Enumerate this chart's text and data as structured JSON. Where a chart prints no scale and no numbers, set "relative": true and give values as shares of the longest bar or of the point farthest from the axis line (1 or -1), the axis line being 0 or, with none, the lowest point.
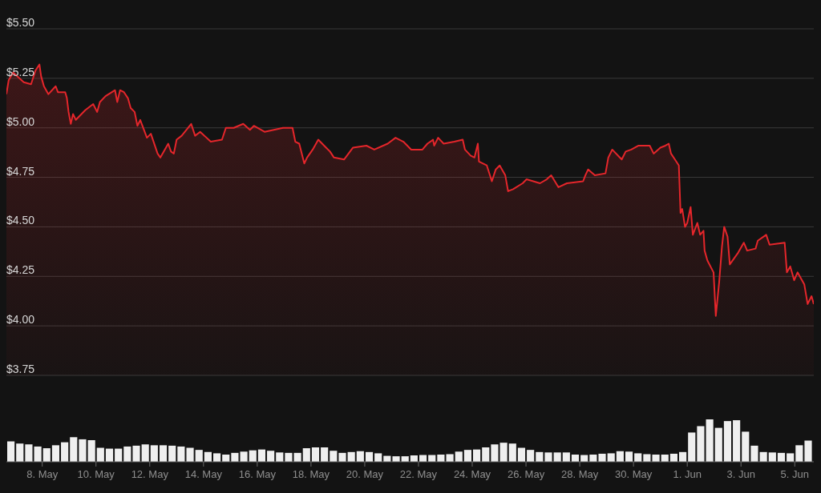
{
  "chart_data": [
    {
      "type": "area",
      "color": "#e5262b",
      "grid": "y",
      "tick_labels": "y",
      "xlim": [
        "--05-06T16:00",
        "--06-05T17:00"
      ],
      "ylim": [
        3.75,
        5.5
      ],
      "yticks": [
        {
          "value": 3.75,
          "label": "$3.75"
        },
        {
          "value": 4,
          "label": "$4.00"
        },
        {
          "value": 4.25,
          "label": "$4.25"
        },
        {
          "value": 4.5,
          "label": "$4.50"
        },
        {
          "value": 4.75,
          "label": "$4.75"
        },
        {
          "value": 5,
          "label": "$5.00"
        },
        {
          "value": 5.25,
          "label": "$5.25"
        },
        {
          "value": 5.5,
          "label": "$5.50"
        }
      ],
      "x": [
        "--05-06T16:00",
        "--05-06T18:00",
        "--05-06T22:00",
        "--05-07T07:30",
        "--05-07T14:00",
        "--05-07T18:00",
        "--05-07T21:30",
        "--05-07T23:00",
        "--05-08T01:30",
        "--05-08T05:30",
        "--05-08T12:00",
        "--05-08T14:00",
        "--05-08T20:30",
        "--05-08T22:00",
        "--05-08T23:30",
        "--05-09T01:30",
        "--05-09T03:30",
        "--05-09T06:00",
        "--05-09T14:30",
        "--05-09T21:30",
        "--05-10T01:00",
        "--05-10T03:30",
        "--05-10T08:30",
        "--05-10T17:00",
        "--05-10T19:00",
        "--05-10T21:30",
        "--05-11T01:00",
        "--05-11T04:30",
        "--05-11T07:00",
        "--05-11T10:30",
        "--05-11T13:00",
        "--05-11T15:30",
        "--05-11T21:30",
        "--05-12T01:00",
        "--05-12T07:00",
        "--05-12T09:30",
        "--05-12T16:30",
        "--05-12T19:00",
        "--05-12T21:30",
        "--05-13T00:00",
        "--05-13T04:30",
        "--05-13T13:00",
        "--05-13T16:30",
        "--05-13T21:00",
        "--05-14T06:30",
        "--05-14T16:30",
        "--05-14T20:00",
        "--05-15T03:00",
        "--05-15T11:30",
        "--05-15T17:30",
        "--05-15T21:00",
        "--05-16T06:30",
        "--05-16T23:00",
        "--05-17T07:30",
        "--05-17T10:00",
        "--05-17T13:30",
        "--05-17T18:00",
        "--05-17T20:30",
        "--05-18T01:30",
        "--05-18T06:30",
        "--05-18T13:30",
        "--05-18T17:00",
        "--05-18T20:30",
        "--05-19T05:30",
        "--05-19T09:30",
        "--05-19T13:30",
        "--05-20T01:30",
        "--05-20T08:30",
        "--05-20T20:30",
        "--05-21T03:30",
        "--05-21T10:30",
        "--05-21T17:30",
        "--05-22T03:30",
        "--05-22T08:00",
        "--05-22T13:00",
        "--05-22T14:00",
        "--05-22T17:30",
        "--05-22T22:30",
        "--05-23T08:00",
        "--05-23T15:30",
        "--05-23T17:30",
        "--05-23T22:30",
        "--05-24T02:00",
        "--05-24T05:00",
        "--05-24T06:00",
        "--05-24T13:00",
        "--05-24T17:30",
        "--05-24T21:00",
        "--05-25T00:30",
        "--05-25T05:30",
        "--05-25T08:00",
        "--05-25T12:30",
        "--05-25T21:00",
        "--05-26T00:30",
        "--05-26T12:30",
        "--05-26T18:30",
        "--05-26T22:30",
        "--05-27T05:00",
        "--05-27T12:30",
        "--05-28T03:00",
        "--05-28T05:00",
        "--05-28T07:30",
        "--05-28T13:30",
        "--05-28T23:00",
        "--05-29T01:30",
        "--05-29T05:00",
        "--05-29T13:30",
        "--05-29T17:00",
        "--05-29T22:00",
        "--05-30T04:30",
        "--05-30T14:30",
        "--05-30T18:00",
        "--05-31T00:00",
        "--05-31T04:30",
        "--05-31T07:30",
        "--05-31T09:30",
        "--05-31T13:00",
        "--05-31T16:30",
        "--05-31T18:00",
        "--05-31T19:30",
        "--05-31T22:00",
        "--06-01T00:00",
        "--06-01T03:00",
        "--06-01T05:00",
        "--06-01T09:00",
        "--06-01T11:30",
        "--06-01T14:30",
        "--06-01T15:30",
        "--06-01T18:00",
        "--06-01T23:30",
        "--06-02T01:30",
        "--06-02T04:30",
        "--06-02T07:00",
        "--06-02T09:00",
        "--06-02T12:00",
        "--06-02T14:00",
        "--06-02T21:30",
        "--06-03T02:30",
        "--06-03T05:30",
        "--06-03T13:00",
        "--06-03T15:00",
        "--06-03T22:30",
        "--06-04T01:30",
        "--06-04T15:00",
        "--06-04T17:00",
        "--06-04T20:00",
        "--06-04T23:30",
        "--06-05T02:30",
        "--06-05T08:30",
        "--06-05T11:30",
        "--06-05T15:00",
        "--06-05T17:00"
      ],
      "values": [
        5.17,
        5.24,
        5.28,
        5.23,
        5.22,
        5.29,
        5.32,
        5.26,
        5.21,
        5.17,
        5.21,
        5.18,
        5.18,
        5.15,
        5.08,
        5.02,
        5.07,
        5.04,
        5.09,
        5.12,
        5.08,
        5.13,
        5.16,
        5.19,
        5.13,
        5.19,
        5.18,
        5.15,
        5.1,
        5.08,
        5.01,
        5.04,
        4.95,
        4.97,
        4.87,
        4.85,
        4.92,
        4.88,
        4.87,
        4.94,
        4.96,
        5.02,
        4.96,
        4.98,
        4.93,
        4.94,
        5.0,
        5.0,
        5.02,
        4.99,
        5.01,
        4.98,
        5.0,
        5.0,
        4.93,
        4.92,
        4.82,
        4.85,
        4.89,
        4.94,
        4.9,
        4.88,
        4.85,
        4.84,
        4.87,
        4.9,
        4.91,
        4.89,
        4.92,
        4.95,
        4.93,
        4.89,
        4.89,
        4.92,
        4.94,
        4.91,
        4.95,
        4.92,
        4.93,
        4.94,
        4.89,
        4.86,
        4.85,
        4.92,
        4.83,
        4.81,
        4.73,
        4.79,
        4.81,
        4.76,
        4.68,
        4.69,
        4.72,
        4.74,
        4.72,
        4.74,
        4.76,
        4.7,
        4.72,
        4.73,
        4.76,
        4.79,
        4.76,
        4.77,
        4.85,
        4.89,
        4.84,
        4.88,
        4.89,
        4.91,
        4.91,
        4.87,
        4.9,
        4.91,
        4.92,
        4.87,
        4.84,
        4.81,
        4.57,
        4.59,
        4.5,
        4.52,
        4.6,
        4.46,
        4.52,
        4.46,
        4.48,
        4.38,
        4.33,
        4.27,
        4.05,
        4.22,
        4.4,
        4.5,
        4.45,
        4.31,
        4.37,
        4.42,
        4.38,
        4.39,
        4.43,
        4.46,
        4.41,
        4.42,
        4.27,
        4.3,
        4.23,
        4.27,
        4.21,
        4.11,
        4.15,
        4.11
      ]
    },
    {
      "type": "bar",
      "color": "#efefef",
      "relative": true,
      "tick_labels": "x",
      "xlim": [
        "--05-06T16:00",
        "--06-05T17:00"
      ],
      "xticks": [
        {
          "value": "--05-08",
          "label": "8. May"
        },
        {
          "value": "--05-10",
          "label": "10. May"
        },
        {
          "value": "--05-12",
          "label": "12. May"
        },
        {
          "value": "--05-14",
          "label": "14. May"
        },
        {
          "value": "--05-16",
          "label": "16. May"
        },
        {
          "value": "--05-18",
          "label": "18. May"
        },
        {
          "value": "--05-20",
          "label": "20. May"
        },
        {
          "value": "--05-22",
          "label": "22. May"
        },
        {
          "value": "--05-24",
          "label": "24. May"
        },
        {
          "value": "--05-26",
          "label": "26. May"
        },
        {
          "value": "--05-28",
          "label": "28. May"
        },
        {
          "value": "--05-30",
          "label": "30. May"
        },
        {
          "value": "--06-01",
          "label": "1. Jun"
        },
        {
          "value": "--06-03",
          "label": "3. Jun"
        },
        {
          "value": "--06-05",
          "label": "5. Jun"
        }
      ],
      "x": [
        "--05-06T20:00",
        "--05-07T04:00",
        "--05-07T12:00",
        "--05-07T20:00",
        "--05-08T04:00",
        "--05-08T12:00",
        "--05-08T20:00",
        "--05-09T04:00",
        "--05-09T12:00",
        "--05-09T20:00",
        "--05-10T04:00",
        "--05-10T12:00",
        "--05-10T20:00",
        "--05-11T04:00",
        "--05-11T12:00",
        "--05-11T20:00",
        "--05-12T04:00",
        "--05-12T12:00",
        "--05-12T20:00",
        "--05-13T04:00",
        "--05-13T12:00",
        "--05-13T20:00",
        "--05-14T04:00",
        "--05-14T12:00",
        "--05-14T20:00",
        "--05-15T04:00",
        "--05-15T12:00",
        "--05-15T20:00",
        "--05-16T04:00",
        "--05-16T12:00",
        "--05-16T20:00",
        "--05-17T04:00",
        "--05-17T12:00",
        "--05-17T20:00",
        "--05-18T04:00",
        "--05-18T12:00",
        "--05-18T20:00",
        "--05-19T04:00",
        "--05-19T12:00",
        "--05-19T20:00",
        "--05-20T04:00",
        "--05-20T12:00",
        "--05-20T20:00",
        "--05-21T04:00",
        "--05-21T12:00",
        "--05-21T20:00",
        "--05-22T04:00",
        "--05-22T12:00",
        "--05-22T20:00",
        "--05-23T04:00",
        "--05-23T12:00",
        "--05-23T20:00",
        "--05-24T04:00",
        "--05-24T12:00",
        "--05-24T20:00",
        "--05-25T04:00",
        "--05-25T12:00",
        "--05-25T20:00",
        "--05-26T04:00",
        "--05-26T12:00",
        "--05-26T20:00",
        "--05-27T04:00",
        "--05-27T12:00",
        "--05-27T20:00",
        "--05-28T04:00",
        "--05-28T12:00",
        "--05-28T20:00",
        "--05-29T04:00",
        "--05-29T12:00",
        "--05-29T20:00",
        "--05-30T04:00",
        "--05-30T12:00",
        "--05-30T20:00",
        "--05-31T04:00",
        "--05-31T12:00",
        "--05-31T20:00",
        "--06-01T04:00",
        "--06-01T12:00",
        "--06-01T20:00",
        "--06-02T04:00",
        "--06-02T12:00",
        "--06-02T20:00",
        "--06-03T04:00",
        "--06-03T12:00",
        "--06-03T20:00",
        "--06-04T04:00",
        "--06-04T12:00",
        "--06-04T20:00",
        "--06-05T04:00",
        "--06-05T12:00"
      ],
      "values": [
        0.48,
        0.43,
        0.41,
        0.36,
        0.32,
        0.39,
        0.46,
        0.58,
        0.53,
        0.51,
        0.33,
        0.31,
        0.31,
        0.36,
        0.38,
        0.41,
        0.39,
        0.39,
        0.38,
        0.36,
        0.33,
        0.28,
        0.23,
        0.2,
        0.17,
        0.21,
        0.24,
        0.27,
        0.29,
        0.26,
        0.22,
        0.21,
        0.21,
        0.32,
        0.34,
        0.34,
        0.26,
        0.21,
        0.23,
        0.25,
        0.23,
        0.2,
        0.14,
        0.13,
        0.13,
        0.15,
        0.16,
        0.16,
        0.17,
        0.18,
        0.24,
        0.28,
        0.29,
        0.34,
        0.41,
        0.45,
        0.43,
        0.33,
        0.28,
        0.23,
        0.22,
        0.22,
        0.22,
        0.17,
        0.16,
        0.17,
        0.19,
        0.2,
        0.25,
        0.24,
        0.2,
        0.18,
        0.17,
        0.17,
        0.19,
        0.23,
        0.69,
        0.84,
        1,
        0.8,
        0.96,
        0.98,
        0.71,
        0.38,
        0.23,
        0.22,
        0.21,
        0.2,
        0.39,
        0.5
      ]
    }
  ]
}
